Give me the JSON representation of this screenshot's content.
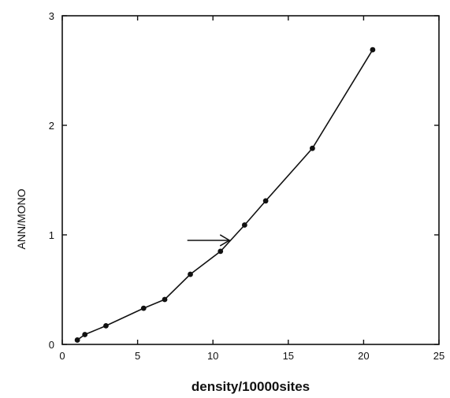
{
  "chart_data": {
    "type": "line",
    "title": "",
    "xlabel": "density/10000sites",
    "ylabel": "ANN/MONO",
    "xlim": [
      0,
      25
    ],
    "ylim": [
      0,
      3
    ],
    "xticks": [
      0,
      5,
      10,
      15,
      20,
      25
    ],
    "yticks": [
      0,
      1,
      2,
      3
    ],
    "xtick_labels": [
      "0",
      "5",
      "10",
      "15",
      "20",
      "25"
    ],
    "ytick_labels": [
      "0",
      "1",
      "2",
      "3"
    ],
    "grid": false,
    "legend": "none",
    "series": [
      {
        "x": [
          1.0,
          1.5,
          2.9,
          5.4,
          6.8,
          8.5,
          10.5,
          12.1,
          13.5,
          16.6,
          20.6
        ],
        "y": [
          0.04,
          0.09,
          0.17,
          0.33,
          0.41,
          0.64,
          0.85,
          1.09,
          1.31,
          1.79,
          2.69
        ]
      }
    ],
    "annotations": [
      {
        "type": "arrow",
        "x_start": 8.3,
        "x_end": 11.1,
        "y": 0.95
      }
    ],
    "colors": {
      "line": "#111111",
      "marker": "#111111",
      "axis": "#111111"
    }
  }
}
